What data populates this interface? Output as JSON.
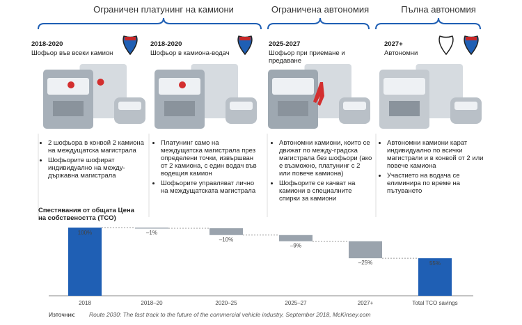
{
  "headers": [
    "Ограничен платунинг на камиони",
    "Ограничена автономия",
    "Пълна автономия"
  ],
  "stages": [
    {
      "year": "2018-2020",
      "subtitle": "Шофьор във всеки камион",
      "bullets": [
        "2 шофьора в конвой 2 камиона на междущатска магистрала",
        "Шофьорите шофират индивидуално на между-държавна магистрала"
      ]
    },
    {
      "year": "2018-2020",
      "subtitle": "Шофьор в камиона-водач",
      "bullets": [
        "Платунинг само на междущатска магистрала през определени точки, извършван от 2 камиона, с един водач във водещия камион",
        "Шофьорите управляват лично на междущатската магистрала"
      ]
    },
    {
      "year": "2025-2027",
      "subtitle": "Шофьор при приемане и предаване",
      "bullets": [
        "Автономни камиони, които се движат по междy-градска магистрала без шофьори (ако е възможно, платунинг с 2 или повече камиона)",
        "Шофьорите се качват на камиони в специалните спирки за камиони"
      ]
    },
    {
      "year": "2027+",
      "subtitle": "Автономни",
      "bullets": [
        "Автономни камиони карат индивидуално по всички магистрали и в конвой от 2 или повече камиона",
        "Участието на водача се елиминира по време на пътуването"
      ]
    }
  ],
  "source_label": "Източник:",
  "source": "Route 2030: The fast track to the future of the commercial vehicle industry, September 2018, McKinsey.com",
  "chart_data": {
    "type": "waterfall",
    "title": "Спестявания от общата Цена на собствеността (TCO)",
    "categories": [
      "2018",
      "2018–20",
      "2020–25",
      "2025–27",
      "2027+",
      "Total TCO savings"
    ],
    "values": [
      100,
      -1,
      -10,
      -9,
      -25,
      55
    ],
    "value_labels": [
      "100%",
      "–1%",
      "–10%",
      "–9%",
      "–25%",
      "55%"
    ],
    "total_indices": [
      0,
      5
    ],
    "ylim": [
      0,
      100
    ],
    "colors": {
      "total": "#1f5fb4",
      "step": "#9aa3ad"
    }
  }
}
